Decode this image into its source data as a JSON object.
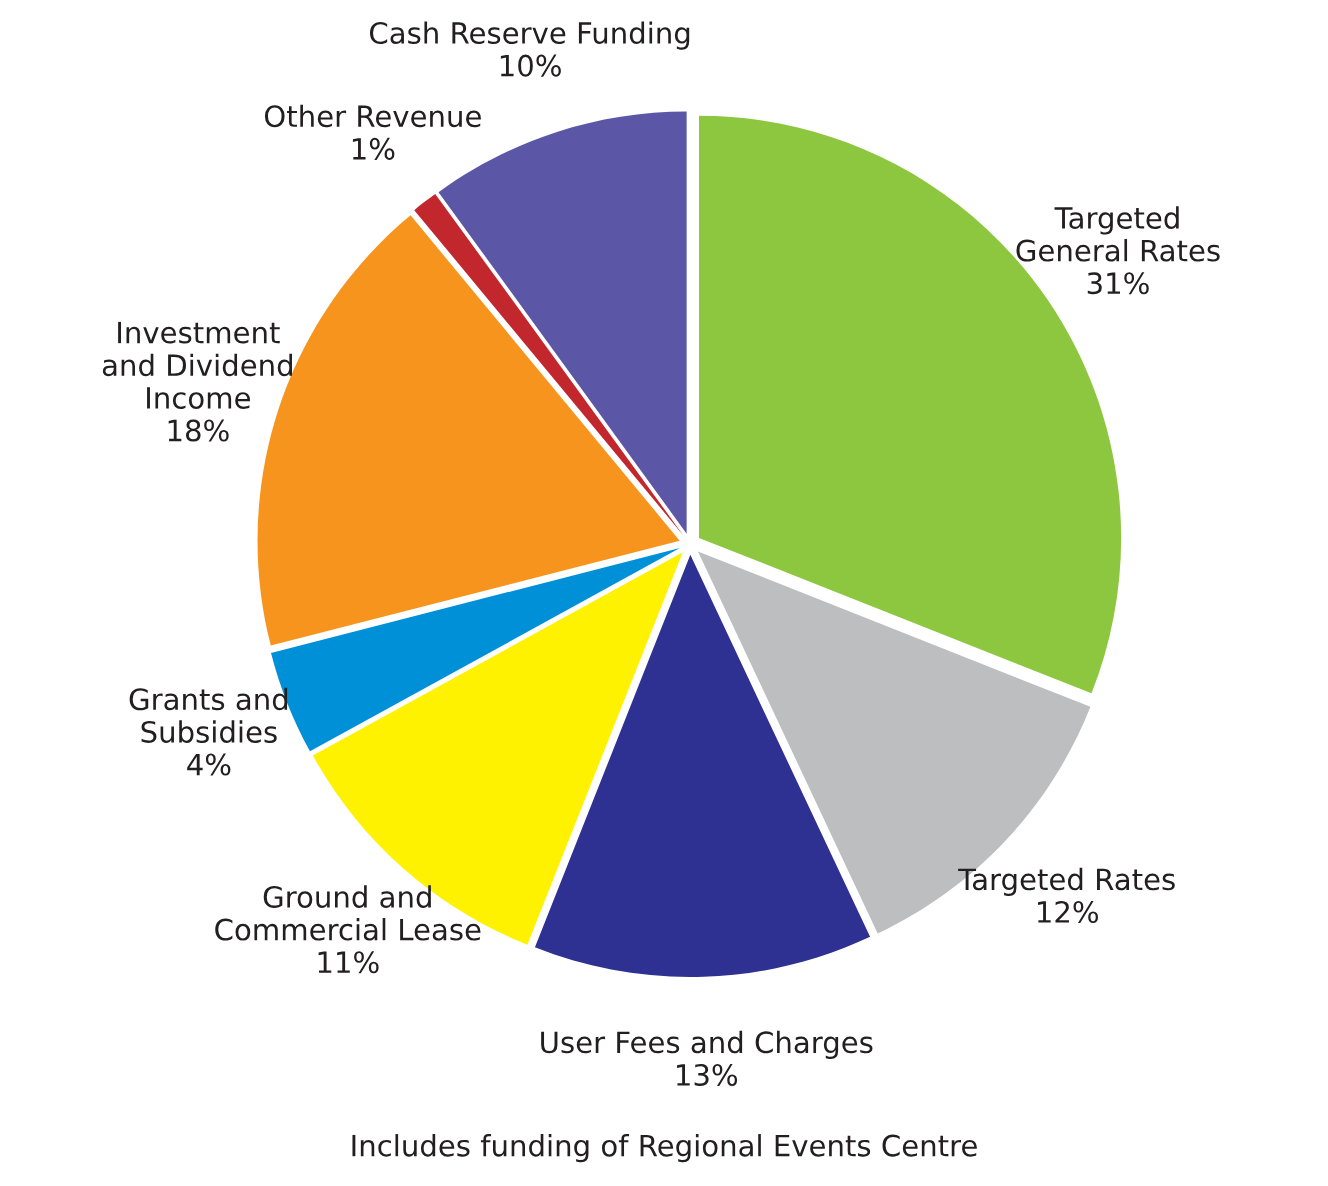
{
  "chart_data": {
    "type": "pie",
    "categories": [
      "Targeted\nGeneral Rates",
      "Targeted Rates",
      "User Fees and Charges",
      "Ground and\nCommercial Lease",
      "Grants and\nSubsidies",
      "Investment\nand Dividend\nIncome",
      "Other Revenue",
      "Cash Reserve Funding"
    ],
    "values": [
      31,
      12,
      13,
      11,
      4,
      18,
      1,
      10
    ],
    "value_labels": [
      "31%",
      "12%",
      "13%",
      "11%",
      "4%",
      "18%",
      "1%",
      "10%"
    ],
    "colors": [
      "#8dc63f",
      "#bcbec0",
      "#2e3192",
      "#fff200",
      "#0090d8",
      "#f7941d",
      "#c1272d",
      "#5b57a6"
    ],
    "annotations": [
      "Includes funding of Regional Events Centre"
    ]
  }
}
